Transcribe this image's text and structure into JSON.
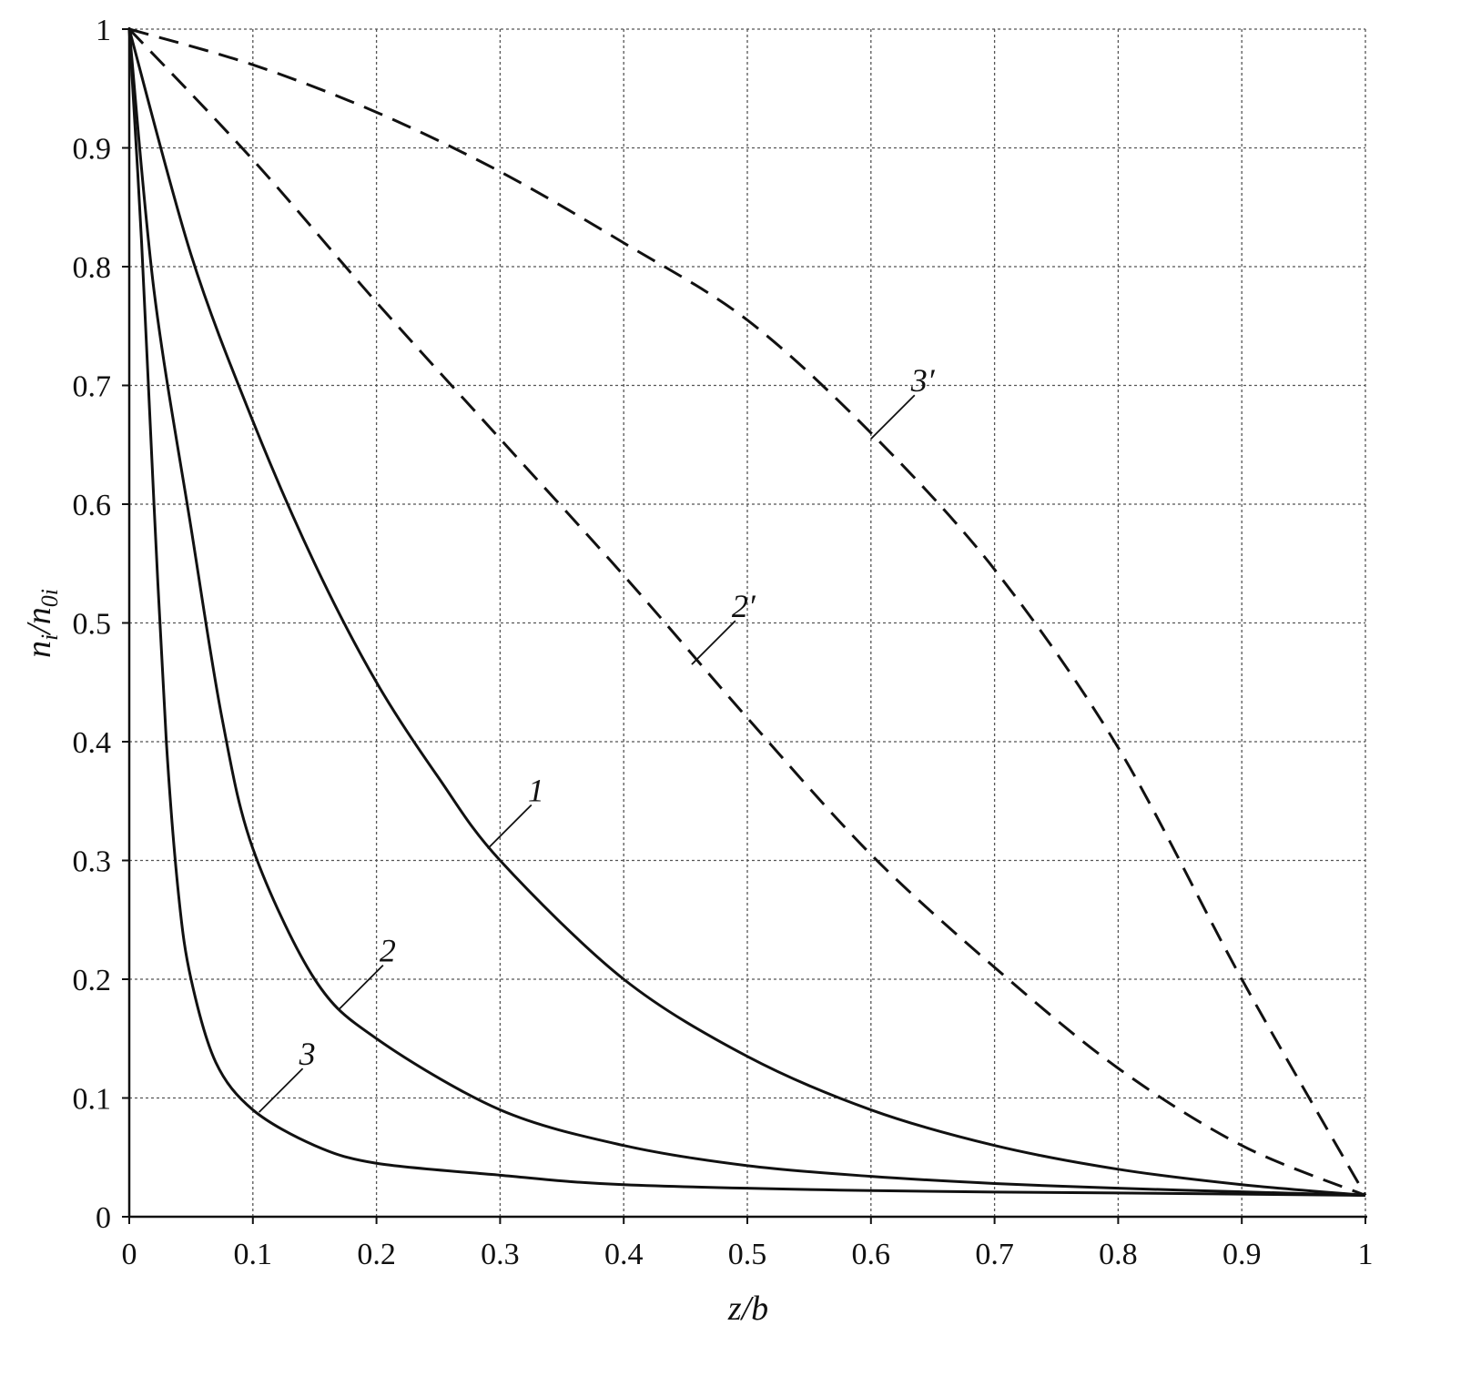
{
  "chart_data": {
    "type": "line",
    "title": "",
    "xlabel": "z/b",
    "ylabel": "n_i/n_0i",
    "ylabel_main": "n",
    "ylabel_sub1": "i",
    "ylabel_mid": "/n",
    "ylabel_sub2": "0i",
    "xlim": [
      0,
      1
    ],
    "ylim": [
      0,
      1
    ],
    "grid": true,
    "xticks": [
      "0",
      "0.1",
      "0.2",
      "0.3",
      "0.4",
      "0.5",
      "0.6",
      "0.7",
      "0.8",
      "0.9",
      "1"
    ],
    "yticks": [
      "0",
      "0.1",
      "0.2",
      "0.3",
      "0.4",
      "0.5",
      "0.6",
      "0.7",
      "0.8",
      "0.9",
      "1"
    ],
    "series": [
      {
        "name": "1",
        "style": "solid",
        "x": [
          0,
          0.05,
          0.1,
          0.15,
          0.2,
          0.25,
          0.3,
          0.4,
          0.5,
          0.6,
          0.7,
          0.8,
          0.9,
          1
        ],
        "y": [
          1,
          0.81,
          0.67,
          0.55,
          0.45,
          0.37,
          0.3,
          0.2,
          0.135,
          0.09,
          0.06,
          0.04,
          0.027,
          0.018
        ],
        "label_at": [
          0.29,
          0.31
        ]
      },
      {
        "name": "2",
        "style": "solid",
        "x": [
          0,
          0.02,
          0.05,
          0.075,
          0.1,
          0.15,
          0.2,
          0.3,
          0.4,
          0.5,
          0.6,
          0.7,
          0.8,
          0.9,
          1
        ],
        "y": [
          1,
          0.78,
          0.58,
          0.42,
          0.31,
          0.2,
          0.15,
          0.09,
          0.06,
          0.043,
          0.034,
          0.028,
          0.024,
          0.021,
          0.018
        ],
        "label_at": [
          0.17,
          0.175
        ]
      },
      {
        "name": "3",
        "style": "solid",
        "x": [
          0,
          0.01,
          0.02,
          0.03,
          0.04,
          0.05,
          0.07,
          0.1,
          0.15,
          0.2,
          0.3,
          0.4,
          0.6,
          0.8,
          1
        ],
        "y": [
          1,
          0.82,
          0.6,
          0.4,
          0.27,
          0.2,
          0.13,
          0.09,
          0.06,
          0.045,
          0.035,
          0.027,
          0.022,
          0.02,
          0.018
        ],
        "label_at": [
          0.105,
          0.088
        ]
      },
      {
        "name": "2′",
        "style": "dashed",
        "x": [
          0,
          0.1,
          0.2,
          0.3,
          0.4,
          0.5,
          0.6,
          0.7,
          0.8,
          0.9,
          1
        ],
        "y": [
          1,
          0.89,
          0.77,
          0.655,
          0.54,
          0.42,
          0.305,
          0.21,
          0.125,
          0.06,
          0.018
        ],
        "label_at": [
          0.455,
          0.465
        ]
      },
      {
        "name": "3′",
        "style": "dashed",
        "x": [
          0,
          0.1,
          0.2,
          0.3,
          0.4,
          0.5,
          0.6,
          0.7,
          0.8,
          0.9,
          1
        ],
        "y": [
          1,
          0.97,
          0.93,
          0.88,
          0.82,
          0.755,
          0.66,
          0.545,
          0.395,
          0.2,
          0.018
        ],
        "label_at": [
          0.6,
          0.655
        ]
      }
    ]
  }
}
